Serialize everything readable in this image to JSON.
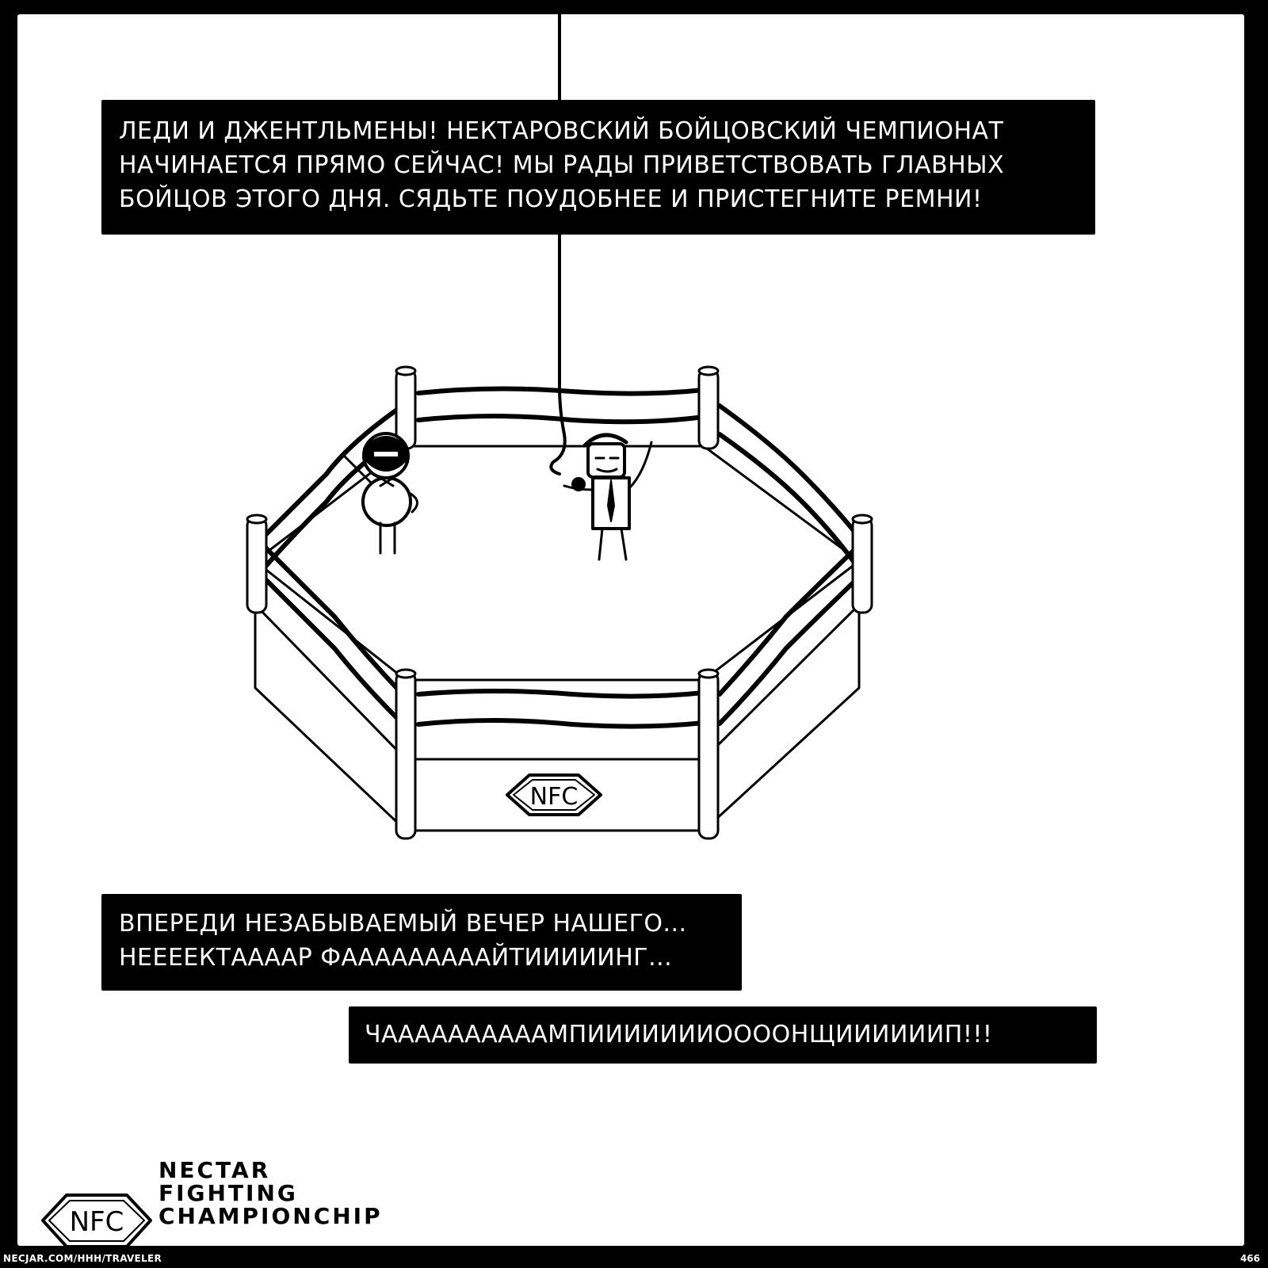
{
  "captions": {
    "announcement": {
      "lines": [
        "ЛЕДИ И ДЖЕНТЛЬМЕНЫ! НЕКТАРОВСКИЙ БОЙЦОВСКИЙ ЧЕМПИОНАТ",
        "НАЧИНАЕТСЯ ПРЯМО СЕЙЧАС! МЫ РАДЫ ПРИВЕТСТВОВАТЬ ГЛАВНЫХ",
        "БОЙЦОВ ЭТОГО ДНЯ. СЯДЬТЕ ПОУДОБНЕЕ И ПРИСТЕГНИТЕ РЕМНИ!"
      ]
    },
    "evening": {
      "lines": [
        "ВПЕРЕДИ НЕЗАБЫВАЕМЫЙ ВЕЧЕР НАШЕГО...",
        "НЕЕЕЕКТААААР ФАААААААААЙТИИИИИНГ..."
      ]
    },
    "championship": {
      "lines": [
        "ЧААААААААААМПИИИИИИИООООНЩИИИИИИП!!!"
      ]
    }
  },
  "ring": {
    "logo_text": "NFC"
  },
  "brand": {
    "logo_text": "NFC",
    "name_lines": [
      "NECTAR",
      "FIGHTING",
      "CHAMPIONCHIP"
    ]
  },
  "footer": {
    "url": "NECJAR.COM/HHH/TRAVELER",
    "page_number": "466"
  },
  "colors": {
    "ink": "#000000",
    "paper": "#ffffff"
  }
}
